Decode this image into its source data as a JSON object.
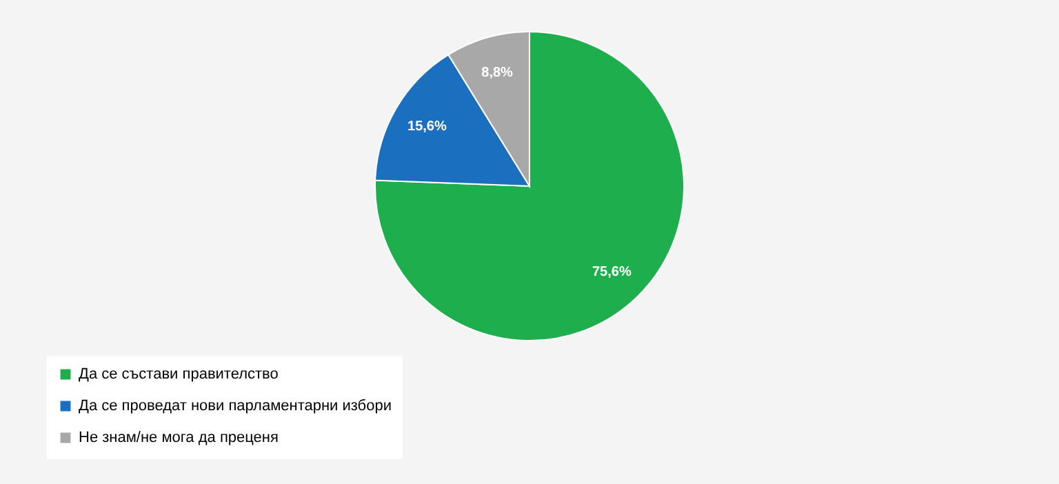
{
  "chart_data": {
    "type": "pie",
    "categories": [
      "Да се състави правителство",
      "Да се проведат нови парламентарни избори",
      "Не знам/не мога да преценя"
    ],
    "values": [
      75.6,
      15.6,
      8.8
    ],
    "colors": [
      "#1fae4d",
      "#1a6fbf",
      "#a8a8a8"
    ],
    "value_labels": [
      "75,6%",
      "15,6%",
      "8,8%"
    ],
    "legend": "bottom left"
  }
}
